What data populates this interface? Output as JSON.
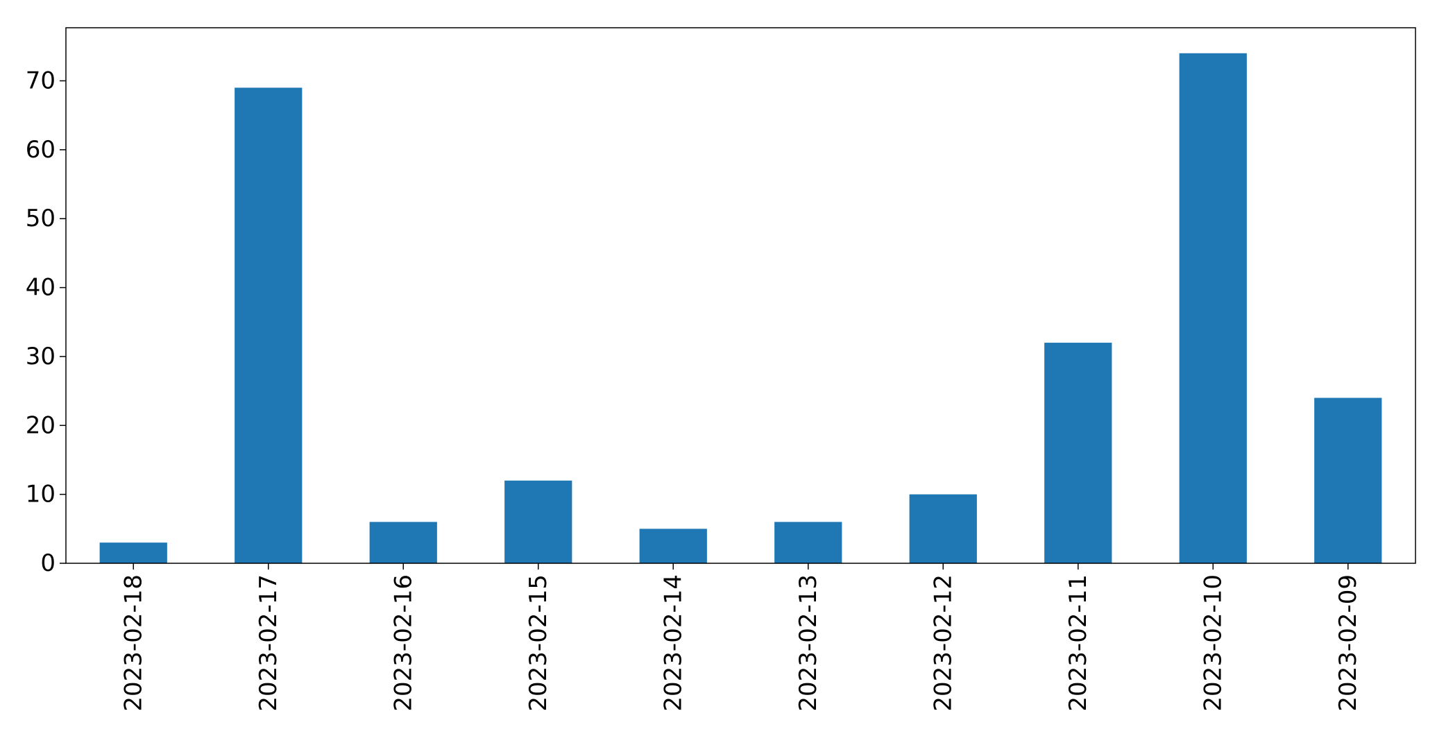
{
  "chart_data": {
    "type": "bar",
    "categories": [
      "2023-02-18",
      "2023-02-17",
      "2023-02-16",
      "2023-02-15",
      "2023-02-14",
      "2023-02-13",
      "2023-02-12",
      "2023-02-11",
      "2023-02-10",
      "2023-02-09"
    ],
    "values": [
      3,
      69,
      6,
      12,
      5,
      6,
      10,
      32,
      74,
      24
    ],
    "yticks": [
      "0",
      "10",
      "20",
      "30",
      "40",
      "50",
      "60",
      "70"
    ],
    "ylim": [
      0,
      77.7
    ],
    "xlabel": "",
    "ylabel": "",
    "title": "",
    "grid": false,
    "legend": false,
    "bar_color": "#1f77b4"
  }
}
